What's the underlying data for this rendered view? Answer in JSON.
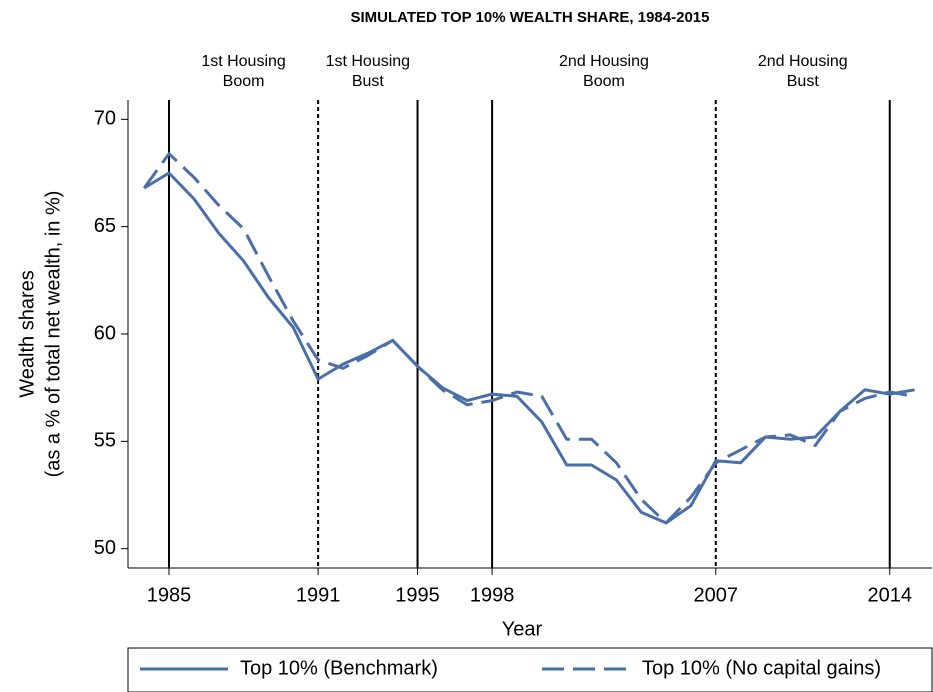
{
  "chart_data": {
    "type": "line",
    "title": "SIMULATED TOP 10% WEALTH SHARE, 1984-2015",
    "xlabel": "Year",
    "ylabel": [
      "Wealth shares",
      "(as a % of total net wealth, in %)"
    ],
    "x": [
      1984,
      1985,
      1986,
      1987,
      1988,
      1989,
      1990,
      1991,
      1992,
      1993,
      1994,
      1995,
      1996,
      1997,
      1998,
      1999,
      2000,
      2001,
      2002,
      2003,
      2004,
      2005,
      2006,
      2007,
      2008,
      2009,
      2010,
      2011,
      2012,
      2013,
      2014,
      2015
    ],
    "series": [
      {
        "name": "Top 10% (Benchmark)",
        "color": "#4a6ea8",
        "dash": "solid",
        "values": [
          66.8,
          67.5,
          66.3,
          64.7,
          63.4,
          61.7,
          60.3,
          57.9,
          58.6,
          59.1,
          59.7,
          58.5,
          57.5,
          56.9,
          57.2,
          57.1,
          55.9,
          53.9,
          53.9,
          53.2,
          51.7,
          51.2,
          52.0,
          54.1,
          54.0,
          55.2,
          55.1,
          55.2,
          56.4,
          57.4,
          57.2,
          57.4
        ]
      },
      {
        "name": "Top 10% (No capital gains)",
        "color": "#4a6ea8",
        "dash": "dashed",
        "values": [
          66.8,
          68.4,
          67.3,
          66.0,
          64.9,
          62.7,
          60.6,
          58.8,
          58.4,
          59.0,
          59.7,
          58.5,
          57.4,
          56.7,
          56.9,
          57.3,
          57.1,
          55.1,
          55.1,
          54.0,
          52.3,
          51.2,
          52.4,
          54.0,
          54.6,
          55.2,
          55.3,
          54.8,
          56.4,
          57.0,
          57.3,
          57.1
        ]
      }
    ],
    "xlim": [
      1983.35,
      2015.7
    ],
    "ylim": [
      49.1,
      70.9
    ],
    "xticks": [
      1985,
      1991,
      1995,
      1998,
      2007,
      2014
    ],
    "yticks": [
      50,
      55,
      60,
      65,
      70
    ],
    "vlines": [
      {
        "x": 1985,
        "style": "solid"
      },
      {
        "x": 1991,
        "style": "dashed"
      },
      {
        "x": 1995,
        "style": "solid"
      },
      {
        "x": 1998,
        "style": "solid"
      },
      {
        "x": 2007,
        "style": "dashed"
      },
      {
        "x": 2014,
        "style": "solid"
      }
    ],
    "annotations": [
      {
        "text": [
          "1st Housing",
          "Boom"
        ],
        "from": 1985,
        "to": 1991
      },
      {
        "text": [
          "1st Housing",
          "Bust"
        ],
        "from": 1991,
        "to": 1995
      },
      {
        "text": [
          "2nd Housing",
          "Boom"
        ],
        "from": 1998,
        "to": 2007
      },
      {
        "text": [
          "2nd Housing",
          "Bust"
        ],
        "from": 2007,
        "to": 2014
      }
    ],
    "legend": "bottom"
  }
}
